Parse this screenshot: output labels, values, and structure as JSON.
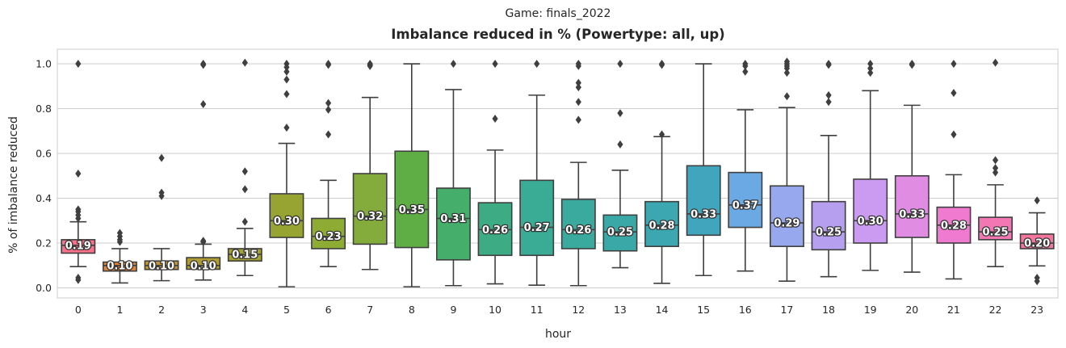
{
  "chart_data": {
    "type": "box",
    "suptitle": "Game: finals_2022",
    "title": "Imbalance reduced in % (Powertype: all, up)",
    "xlabel": "hour",
    "ylabel": "% of imbalance reduced",
    "ylim": [
      -0.045,
      1.065
    ],
    "yticks": [
      0.0,
      0.2,
      0.4,
      0.6,
      0.8,
      1.0
    ],
    "grid": true,
    "categories": [
      "0",
      "1",
      "2",
      "3",
      "4",
      "5",
      "6",
      "7",
      "8",
      "9",
      "10",
      "11",
      "12",
      "13",
      "14",
      "15",
      "16",
      "17",
      "18",
      "19",
      "20",
      "21",
      "22",
      "23"
    ],
    "boxes": [
      {
        "hour": "0",
        "color": "#f77189",
        "whislo": 0.095,
        "q1": 0.155,
        "median": 0.19,
        "q3": 0.215,
        "whishi": 0.295,
        "label": "0.19",
        "fliers": [
          1.0,
          0.51,
          0.35,
          0.34,
          0.325,
          0.31,
          0.045,
          0.035
        ]
      },
      {
        "hour": "1",
        "color": "#e68332",
        "whislo": 0.022,
        "q1": 0.075,
        "median": 0.1,
        "q3": 0.115,
        "whishi": 0.175,
        "label": "0.10",
        "fliers": [
          0.245,
          0.23,
          0.215,
          0.205
        ]
      },
      {
        "hour": "2",
        "color": "#c69432",
        "whislo": 0.032,
        "q1": 0.082,
        "median": 0.1,
        "q3": 0.12,
        "whishi": 0.175,
        "label": "0.10",
        "fliers": [
          0.58,
          0.425,
          0.41
        ]
      },
      {
        "hour": "3",
        "color": "#b19c31",
        "whislo": 0.035,
        "q1": 0.083,
        "median": 0.1,
        "q3": 0.135,
        "whishi": 0.195,
        "label": "0.10",
        "fliers": [
          1.0,
          0.995,
          0.82,
          0.21,
          0.205
        ]
      },
      {
        "hour": "4",
        "color": "#a4a031",
        "whislo": 0.055,
        "q1": 0.12,
        "median": 0.15,
        "q3": 0.175,
        "whishi": 0.265,
        "label": "0.15",
        "fliers": [
          1.005,
          0.52,
          0.44,
          0.295
        ]
      },
      {
        "hour": "5",
        "color": "#97a431",
        "whislo": 0.005,
        "q1": 0.225,
        "median": 0.3,
        "q3": 0.42,
        "whishi": 0.645,
        "label": "0.30",
        "fliers": [
          1.0,
          0.985,
          0.965,
          0.93,
          0.865,
          0.715
        ]
      },
      {
        "hour": "6",
        "color": "#8eab34",
        "whislo": 0.095,
        "q1": 0.175,
        "median": 0.23,
        "q3": 0.31,
        "whishi": 0.48,
        "label": "0.23",
        "fliers": [
          1.0,
          0.995,
          0.825,
          0.795,
          0.685
        ]
      },
      {
        "hour": "7",
        "color": "#84ac3d",
        "whislo": 0.082,
        "q1": 0.195,
        "median": 0.32,
        "q3": 0.51,
        "whishi": 0.85,
        "label": "0.32",
        "fliers": [
          1.0,
          0.995,
          0.99
        ]
      },
      {
        "hour": "8",
        "color": "#5fae45",
        "whislo": 0.005,
        "q1": 0.18,
        "median": 0.35,
        "q3": 0.61,
        "whishi": 1.0,
        "label": "0.35",
        "fliers": []
      },
      {
        "hour": "9",
        "color": "#45ae6b",
        "whislo": 0.01,
        "q1": 0.125,
        "median": 0.31,
        "q3": 0.445,
        "whishi": 0.885,
        "label": "0.31",
        "fliers": [
          1.0
        ]
      },
      {
        "hour": "10",
        "color": "#3dac85",
        "whislo": 0.018,
        "q1": 0.145,
        "median": 0.26,
        "q3": 0.38,
        "whishi": 0.615,
        "label": "0.26",
        "fliers": [
          1.0,
          0.755
        ]
      },
      {
        "hour": "11",
        "color": "#3aab94",
        "whislo": 0.012,
        "q1": 0.145,
        "median": 0.27,
        "q3": 0.48,
        "whishi": 0.86,
        "label": "0.27",
        "fliers": [
          1.0
        ]
      },
      {
        "hour": "12",
        "color": "#39aa9d",
        "whislo": 0.01,
        "q1": 0.175,
        "median": 0.26,
        "q3": 0.395,
        "whishi": 0.56,
        "label": "0.26",
        "fliers": [
          1.0,
          0.99,
          0.915,
          0.895,
          0.83,
          0.75
        ]
      },
      {
        "hour": "13",
        "color": "#3aa8a7",
        "whislo": 0.09,
        "q1": 0.165,
        "median": 0.25,
        "q3": 0.325,
        "whishi": 0.525,
        "label": "0.25",
        "fliers": [
          1.0,
          0.78,
          0.64
        ]
      },
      {
        "hour": "14",
        "color": "#3ca7b1",
        "whislo": 0.02,
        "q1": 0.185,
        "median": 0.28,
        "q3": 0.385,
        "whishi": 0.675,
        "label": "0.28",
        "fliers": [
          1.0,
          0.995,
          0.685
        ]
      },
      {
        "hour": "15",
        "color": "#42a5be",
        "whislo": 0.055,
        "q1": 0.235,
        "median": 0.33,
        "q3": 0.545,
        "whishi": 1.0,
        "label": "0.33",
        "fliers": []
      },
      {
        "hour": "16",
        "color": "#6aa9e3",
        "whislo": 0.075,
        "q1": 0.27,
        "median": 0.37,
        "q3": 0.515,
        "whishi": 0.795,
        "label": "0.37",
        "fliers": [
          1.0,
          0.99,
          0.965
        ]
      },
      {
        "hour": "17",
        "color": "#97a8ee",
        "whislo": 0.03,
        "q1": 0.185,
        "median": 0.29,
        "q3": 0.455,
        "whishi": 0.805,
        "label": "0.29",
        "fliers": [
          1.01,
          1.0,
          0.99,
          0.98,
          0.96,
          0.855
        ]
      },
      {
        "hour": "18",
        "color": "#b79ff0",
        "whislo": 0.05,
        "q1": 0.17,
        "median": 0.25,
        "q3": 0.385,
        "whishi": 0.68,
        "label": "0.25",
        "fliers": [
          1.0,
          0.995,
          0.86,
          0.83
        ]
      },
      {
        "hour": "19",
        "color": "#cb9bf1",
        "whislo": 0.078,
        "q1": 0.2,
        "median": 0.3,
        "q3": 0.485,
        "whishi": 0.88,
        "label": "0.30",
        "fliers": [
          1.0,
          0.98,
          0.96
        ]
      },
      {
        "hour": "20",
        "color": "#e08ce3",
        "whislo": 0.07,
        "q1": 0.225,
        "median": 0.33,
        "q3": 0.5,
        "whishi": 0.815,
        "label": "0.33",
        "fliers": [
          1.0,
          0.995
        ]
      },
      {
        "hour": "21",
        "color": "#f07ad0",
        "whislo": 0.04,
        "q1": 0.2,
        "median": 0.28,
        "q3": 0.36,
        "whishi": 0.505,
        "label": "0.28",
        "fliers": [
          1.0,
          0.87,
          0.685
        ]
      },
      {
        "hour": "22",
        "color": "#f377b3",
        "whislo": 0.095,
        "q1": 0.215,
        "median": 0.25,
        "q3": 0.315,
        "whishi": 0.46,
        "label": "0.25",
        "fliers": [
          1.005,
          0.57,
          0.535,
          0.515
        ]
      },
      {
        "hour": "23",
        "color": "#f6759d",
        "whislo": 0.098,
        "q1": 0.175,
        "median": 0.2,
        "q3": 0.24,
        "whishi": 0.335,
        "label": "0.20",
        "fliers": [
          0.39,
          0.045,
          0.03
        ]
      }
    ]
  }
}
